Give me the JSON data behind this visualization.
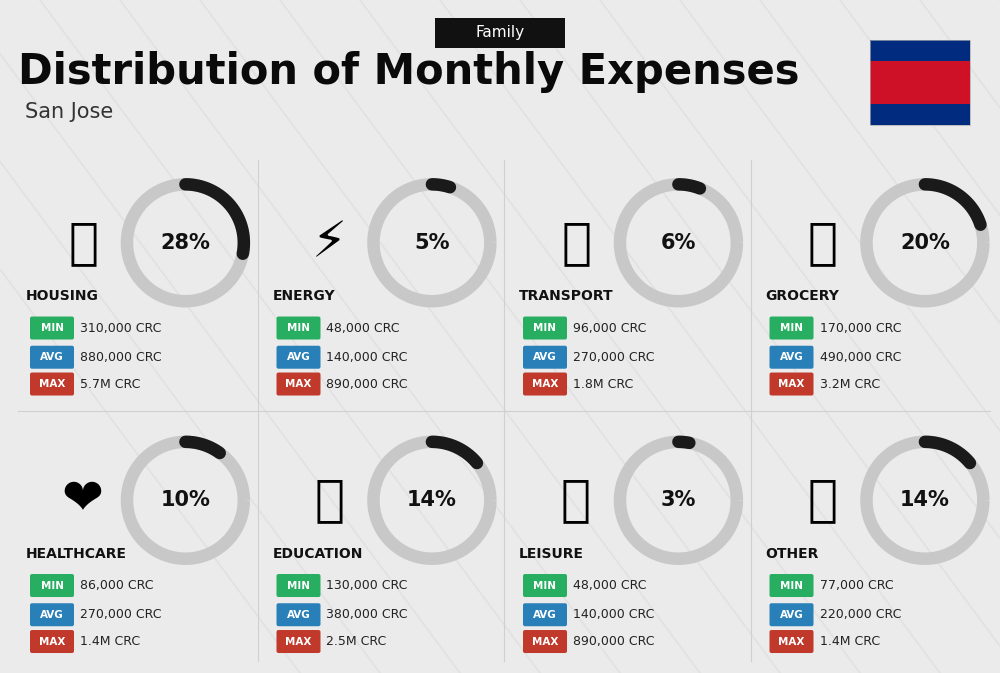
{
  "title": "Distribution of Monthly Expenses",
  "subtitle": "San Jose",
  "header_tag": "Family",
  "bg_color": "#ebebeb",
  "categories": [
    {
      "name": "HOUSING",
      "pct": 28,
      "min": "310,000 CRC",
      "avg": "880,000 CRC",
      "max": "5.7M CRC",
      "icon": "🏢",
      "row": 0,
      "col": 0
    },
    {
      "name": "ENERGY",
      "pct": 5,
      "min": "48,000 CRC",
      "avg": "140,000 CRC",
      "max": "890,000 CRC",
      "icon": "⚡",
      "row": 0,
      "col": 1
    },
    {
      "name": "TRANSPORT",
      "pct": 6,
      "min": "96,000 CRC",
      "avg": "270,000 CRC",
      "max": "1.8M CRC",
      "icon": "🚌",
      "row": 0,
      "col": 2
    },
    {
      "name": "GROCERY",
      "pct": 20,
      "min": "170,000 CRC",
      "avg": "490,000 CRC",
      "max": "3.2M CRC",
      "icon": "🛒",
      "row": 0,
      "col": 3
    },
    {
      "name": "HEALTHCARE",
      "pct": 10,
      "min": "86,000 CRC",
      "avg": "270,000 CRC",
      "max": "1.4M CRC",
      "icon": "❤️",
      "row": 1,
      "col": 0
    },
    {
      "name": "EDUCATION",
      "pct": 14,
      "min": "130,000 CRC",
      "avg": "380,000 CRC",
      "max": "2.5M CRC",
      "icon": "🎓",
      "row": 1,
      "col": 1
    },
    {
      "name": "LEISURE",
      "pct": 3,
      "min": "48,000 CRC",
      "avg": "140,000 CRC",
      "max": "890,000 CRC",
      "icon": "🛍️",
      "row": 1,
      "col": 2
    },
    {
      "name": "OTHER",
      "pct": 14,
      "min": "77,000 CRC",
      "avg": "220,000 CRC",
      "max": "1.4M CRC",
      "icon": "👜",
      "row": 1,
      "col": 3
    }
  ],
  "min_color": "#27ae60",
  "avg_color": "#2980b9",
  "max_color": "#c0392b",
  "arc_bg_color": "#c8c8c8",
  "arc_fill_color": "#1a1a1a",
  "flag_colors": [
    "#002b7f",
    "#ce1126",
    "#002b7f"
  ],
  "flag_ratios": [
    0.25,
    0.5,
    0.25
  ]
}
